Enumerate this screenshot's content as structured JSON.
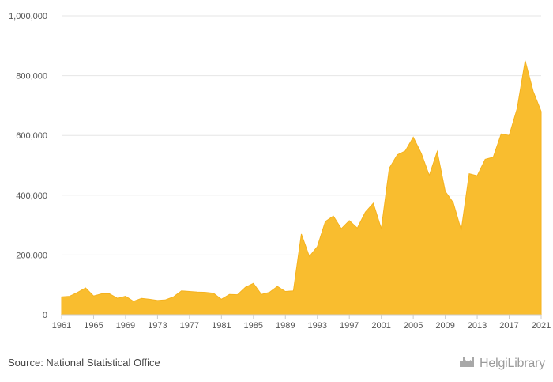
{
  "chart_data": {
    "type": "area",
    "title": "",
    "xlabel": "",
    "ylabel": "",
    "x": [
      1961,
      1962,
      1963,
      1964,
      1965,
      1966,
      1967,
      1968,
      1969,
      1970,
      1971,
      1972,
      1973,
      1974,
      1975,
      1976,
      1977,
      1978,
      1979,
      1980,
      1981,
      1982,
      1983,
      1984,
      1985,
      1986,
      1987,
      1988,
      1989,
      1990,
      1991,
      1992,
      1993,
      1994,
      1995,
      1996,
      1997,
      1998,
      1999,
      2000,
      2001,
      2002,
      2003,
      2004,
      2005,
      2006,
      2007,
      2008,
      2009,
      2010,
      2011,
      2012,
      2013,
      2014,
      2015,
      2016,
      2017,
      2018,
      2019,
      2020,
      2021
    ],
    "values": [
      60000,
      62000,
      75000,
      90000,
      63000,
      70000,
      70000,
      55000,
      62000,
      45000,
      55000,
      52000,
      48000,
      50000,
      60000,
      80000,
      78000,
      76000,
      75000,
      72000,
      52000,
      68000,
      67000,
      92000,
      105000,
      68000,
      75000,
      95000,
      78000,
      80000,
      270000,
      195000,
      228000,
      312000,
      330000,
      288000,
      315000,
      290000,
      343000,
      373000,
      288000,
      490000,
      535000,
      548000,
      594000,
      540000,
      466000,
      546000,
      413000,
      375000,
      283000,
      472000,
      465000,
      520000,
      527000,
      605000,
      600000,
      690000,
      850000,
      748000,
      680000
    ],
    "ylim": [
      0,
      1000000
    ],
    "y_ticks": [
      "0",
      "200,000",
      "400,000",
      "600,000",
      "800,000",
      "1,000,000"
    ],
    "x_ticks": [
      "1961",
      "1965",
      "1969",
      "1973",
      "1977",
      "1981",
      "1985",
      "1989",
      "1993",
      "1997",
      "2001",
      "2005",
      "2009",
      "2013",
      "2017",
      "2021"
    ],
    "color": "#F9BD2F",
    "grid": true,
    "legend": "none"
  },
  "footer": {
    "source": "Source: National Statistical Office",
    "logo_text": "HelgiLibrary",
    "logo_icon": "factory-icon"
  }
}
